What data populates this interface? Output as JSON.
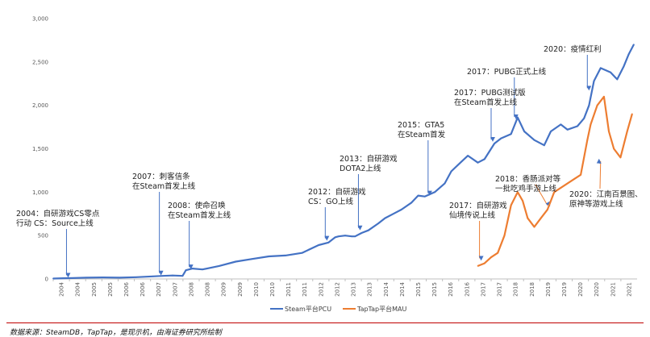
{
  "chart_data": {
    "type": "line",
    "ylim": [
      0,
      3000
    ],
    "yticks": [
      "0",
      "500",
      "1,000",
      "1,500",
      "2,000",
      "2,500",
      "3,000"
    ],
    "ytick_values": [
      0,
      500,
      1000,
      1500,
      2000,
      2500,
      3000
    ],
    "x_range": [
      2004.0,
      2021.6
    ],
    "xtick_labels": [
      "2004",
      "2004",
      "2005",
      "2005",
      "2006",
      "2006",
      "2007",
      "2007",
      "2008",
      "2008",
      "2009",
      "2009",
      "2010",
      "2010",
      "2011",
      "2011",
      "2012",
      "2012",
      "2013",
      "2013",
      "2014",
      "2014",
      "2015",
      "2015",
      "2016",
      "2016",
      "2017",
      "2017",
      "2018",
      "2018",
      "2019",
      "2019",
      "2020",
      "2020",
      "2021",
      "2021"
    ],
    "grid": false,
    "legend_position": "bottom",
    "series": [
      {
        "name": "Steam平台PCU",
        "color": "#4472C4",
        "x": [
          2004.0,
          2004.3,
          2004.6,
          2005.0,
          2005.5,
          2006.0,
          2006.5,
          2007.0,
          2007.3,
          2007.6,
          2007.9,
          2008.0,
          2008.2,
          2008.5,
          2009.0,
          2009.5,
          2010.0,
          2010.5,
          2011.0,
          2011.5,
          2012.0,
          2012.3,
          2012.5,
          2012.6,
          2012.8,
          2013.0,
          2013.1,
          2013.3,
          2013.5,
          2013.8,
          2014.0,
          2014.3,
          2014.5,
          2014.8,
          2015.0,
          2015.2,
          2015.5,
          2015.8,
          2016.0,
          2016.3,
          2016.5,
          2016.8,
          2017.0,
          2017.3,
          2017.5,
          2017.8,
          2018.0,
          2018.2,
          2018.5,
          2018.8,
          2019.0,
          2019.3,
          2019.5,
          2019.8,
          2020.0,
          2020.15,
          2020.3,
          2020.5,
          2020.8,
          2021.0,
          2021.2,
          2021.35,
          2021.5
        ],
        "y": [
          5,
          8,
          10,
          15,
          18,
          15,
          20,
          30,
          35,
          40,
          35,
          100,
          120,
          110,
          150,
          200,
          230,
          260,
          270,
          300,
          390,
          420,
          480,
          490,
          500,
          490,
          490,
          530,
          560,
          640,
          700,
          760,
          800,
          880,
          960,
          950,
          1000,
          1100,
          1240,
          1350,
          1420,
          1340,
          1380,
          1560,
          1620,
          1670,
          1860,
          1700,
          1600,
          1540,
          1700,
          1780,
          1720,
          1760,
          1850,
          2000,
          2280,
          2430,
          2380,
          2300,
          2450,
          2590,
          2700
        ],
        "points_note": ""
      },
      {
        "name": "TapTap平台MAU",
        "color": "#ED7D31",
        "x": [
          2016.8,
          2017.0,
          2017.2,
          2017.4,
          2017.6,
          2017.8,
          2018.0,
          2018.15,
          2018.3,
          2018.5,
          2018.7,
          2018.9,
          2019.1,
          2019.3,
          2019.5,
          2019.7,
          2019.9,
          2020.0,
          2020.1,
          2020.2,
          2020.4,
          2020.6,
          2020.75,
          2020.9,
          2021.1,
          2021.3,
          2021.45
        ],
        "y": [
          150,
          180,
          250,
          300,
          500,
          850,
          1000,
          900,
          700,
          600,
          700,
          800,
          1000,
          1050,
          1100,
          1150,
          1200,
          1400,
          1600,
          1780,
          2000,
          2100,
          1700,
          1500,
          1400,
          1700,
          1900
        ],
        "points_note": ""
      }
    ],
    "annotations": [
      {
        "lines": [
          "2004：自研游戏CS零点",
          "行动 CS：Source上线"
        ],
        "x": 2004.4,
        "y": 15
      },
      {
        "lines": [
          "2007：刺客信条",
          "在Steam首发上线"
        ],
        "x": 2007.2,
        "y": 40
      },
      {
        "lines": [
          "2008：使命召唤",
          "在Steam首发上线"
        ],
        "x": 2008.1,
        "y": 110
      },
      {
        "lines": [
          "2012：自研游戏",
          "CS：GO上线"
        ],
        "x": 2012.2,
        "y": 440
      },
      {
        "lines": [
          "2013：自研游戏",
          "DOTA2上线"
        ],
        "x": 2013.2,
        "y": 560
      },
      {
        "lines": [
          "2015：GTA5",
          "在Steam首发"
        ],
        "x": 2015.3,
        "y": 960
      },
      {
        "lines": [
          "2017：PUBG测试版",
          "在Steam首发上线"
        ],
        "x": 2017.2,
        "y": 1580
      },
      {
        "lines": [
          "2017：PUBG正式上线"
        ],
        "x": 2017.9,
        "y": 1840
      },
      {
        "lines": [
          "2020：疫情红利"
        ],
        "x": 2020.1,
        "y": 2170
      },
      {
        "lines": [
          "2017：自研游戏",
          "仙境传说上线"
        ],
        "x": 2016.85,
        "y": 210
      },
      {
        "lines": [
          "2018：香肠派对等",
          "一批吃鸡手游上线"
        ],
        "x": 2018.9,
        "y": 820
      },
      {
        "lines": [
          "2020：江南百景图、",
          "原神等游戏上线"
        ],
        "x": 2020.5,
        "y": 1330
      }
    ]
  },
  "source_text": "数据来源：SteamDB，TapTap，是现示机，由海证券研究所绘制"
}
